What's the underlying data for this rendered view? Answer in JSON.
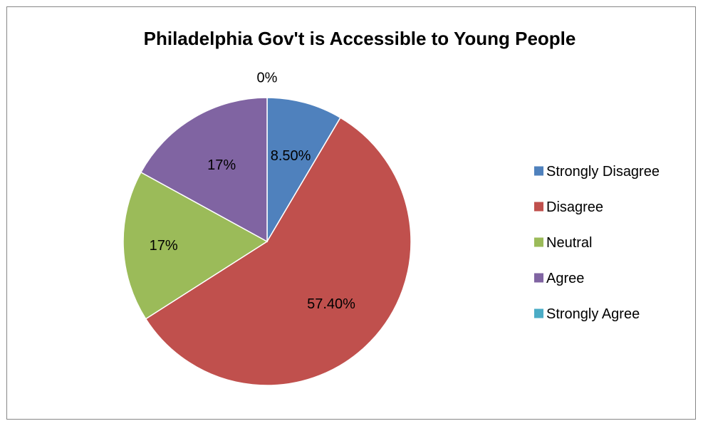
{
  "chart_data": {
    "type": "pie",
    "title": "Philadelphia Gov't is Accessible to Young People",
    "categories": [
      "Strongly Disagree",
      "Disagree",
      "Neutral",
      "Agree",
      "Strongly Agree"
    ],
    "values": [
      8.5,
      57.4,
      17,
      17,
      0
    ],
    "data_labels": [
      "8.50%",
      "57.40%",
      "17%",
      "17%",
      "0%"
    ],
    "colors": [
      "#4F81BD",
      "#C0504D",
      "#9BBB59",
      "#8064A2",
      "#4BACC6"
    ],
    "legend_position": "right",
    "start_angle": "12 o'clock, clockwise"
  }
}
